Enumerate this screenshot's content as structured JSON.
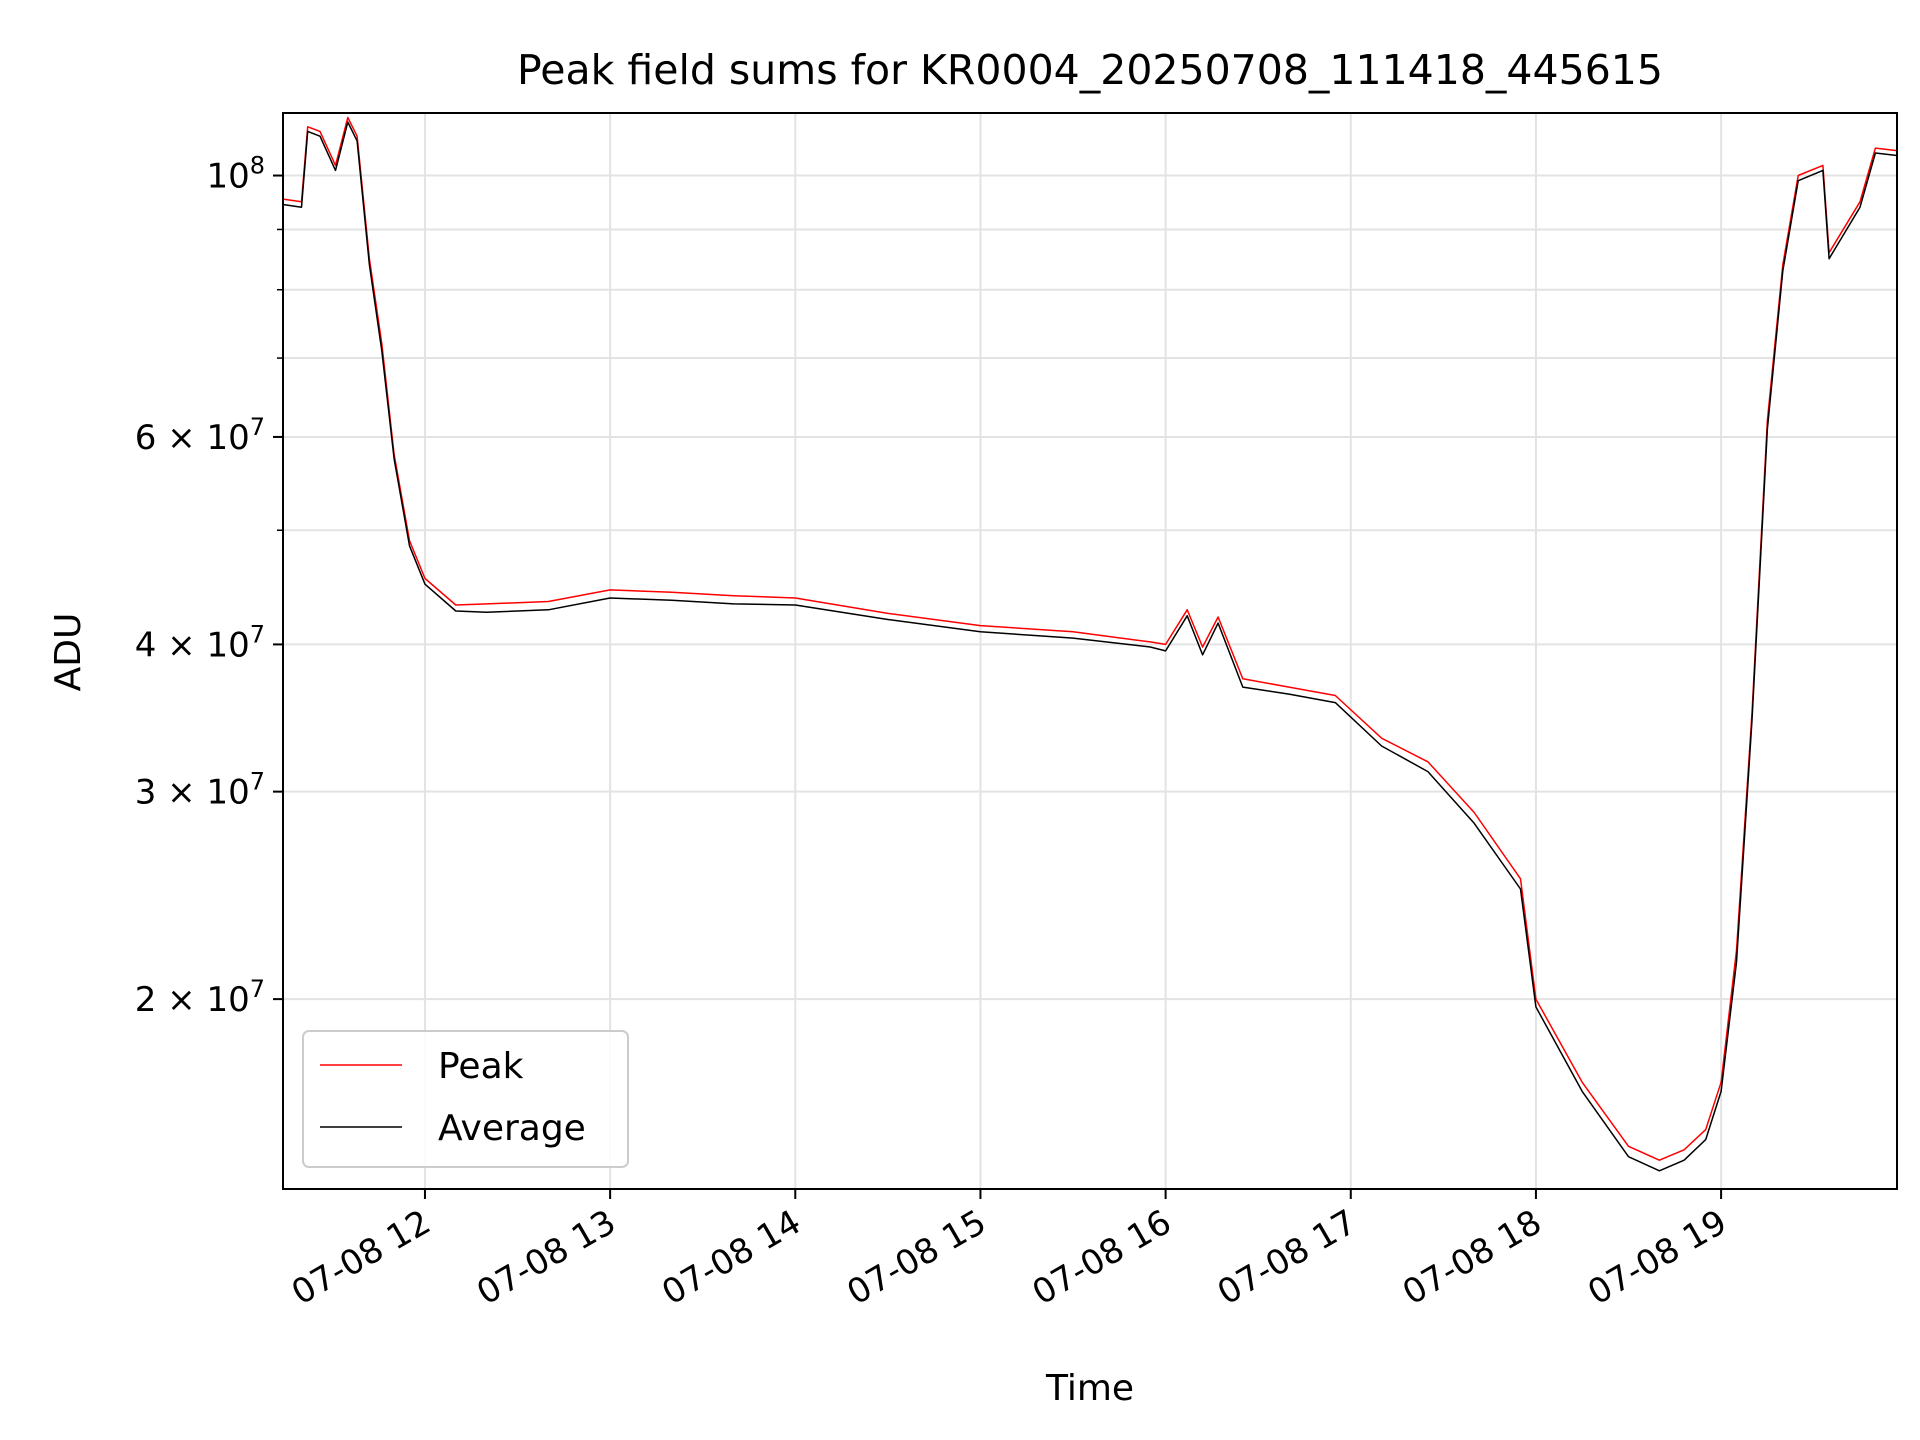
{
  "chart_data": {
    "type": "line",
    "title": "Peak field sums for KR0004_20250708_111418_445615",
    "xlabel": "Time",
    "ylabel": "ADU",
    "yscale": "log",
    "ylim": [
      13800000,
      113000000
    ],
    "xlim": [
      "2025-07-08 11:14",
      "2025-07-08 19:57"
    ],
    "grid": true,
    "legend": "lower-left",
    "x_ticks": [
      {
        "t": "2025-07-08 12:00",
        "label": "07-08 12"
      },
      {
        "t": "2025-07-08 13:00",
        "label": "07-08 13"
      },
      {
        "t": "2025-07-08 14:00",
        "label": "07-08 14"
      },
      {
        "t": "2025-07-08 15:00",
        "label": "07-08 15"
      },
      {
        "t": "2025-07-08 16:00",
        "label": "07-08 16"
      },
      {
        "t": "2025-07-08 17:00",
        "label": "07-08 17"
      },
      {
        "t": "2025-07-08 18:00",
        "label": "07-08 18"
      },
      {
        "t": "2025-07-08 19:00",
        "label": "07-08 19"
      }
    ],
    "y_ticks": [
      {
        "v": 20000000,
        "base": "2 × 10",
        "exp": "7"
      },
      {
        "v": 30000000,
        "base": "3 × 10",
        "exp": "7"
      },
      {
        "v": 40000000,
        "base": "4 × 10",
        "exp": "7"
      },
      {
        "v": 60000000,
        "base": "6 × 10",
        "exp": "7"
      },
      {
        "v": 100000000,
        "base": "10",
        "exp": "8"
      }
    ],
    "y_minor_ticks": [
      50000000,
      70000000,
      80000000,
      90000000
    ],
    "series": [
      {
        "name": "Peak",
        "color": "#ff0000",
        "points": [
          [
            "2025-07-08 11:14",
            95500000
          ],
          [
            "2025-07-08 11:20",
            95000000
          ],
          [
            "2025-07-08 11:22",
            110000000
          ],
          [
            "2025-07-08 11:26",
            109000000
          ],
          [
            "2025-07-08 11:31",
            102000000
          ],
          [
            "2025-07-08 11:35",
            112000000
          ],
          [
            "2025-07-08 11:38",
            108000000
          ],
          [
            "2025-07-08 11:42",
            85000000
          ],
          [
            "2025-07-08 11:46",
            72000000
          ],
          [
            "2025-07-08 11:50",
            58000000
          ],
          [
            "2025-07-08 11:55",
            49000000
          ],
          [
            "2025-07-08 12:00",
            45500000
          ],
          [
            "2025-07-08 12:10",
            43200000
          ],
          [
            "2025-07-08 12:20",
            43300000
          ],
          [
            "2025-07-08 12:40",
            43500000
          ],
          [
            "2025-07-08 13:00",
            44500000
          ],
          [
            "2025-07-08 13:20",
            44300000
          ],
          [
            "2025-07-08 13:40",
            44000000
          ],
          [
            "2025-07-08 14:00",
            43800000
          ],
          [
            "2025-07-08 14:30",
            42500000
          ],
          [
            "2025-07-08 15:00",
            41500000
          ],
          [
            "2025-07-08 15:30",
            41000000
          ],
          [
            "2025-07-08 15:55",
            40200000
          ],
          [
            "2025-07-08 16:00",
            40000000
          ],
          [
            "2025-07-08 16:07",
            42800000
          ],
          [
            "2025-07-08 16:12",
            39800000
          ],
          [
            "2025-07-08 16:17",
            42200000
          ],
          [
            "2025-07-08 16:25",
            37400000
          ],
          [
            "2025-07-08 16:40",
            36800000
          ],
          [
            "2025-07-08 16:55",
            36200000
          ],
          [
            "2025-07-08 17:10",
            33300000
          ],
          [
            "2025-07-08 17:25",
            31800000
          ],
          [
            "2025-07-08 17:40",
            28800000
          ],
          [
            "2025-07-08 17:55",
            25300000
          ],
          [
            "2025-07-08 18:00",
            20000000
          ],
          [
            "2025-07-08 18:15",
            17000000
          ],
          [
            "2025-07-08 18:30",
            15000000
          ],
          [
            "2025-07-08 18:40",
            14600000
          ],
          [
            "2025-07-08 18:48",
            14900000
          ],
          [
            "2025-07-08 18:55",
            15500000
          ],
          [
            "2025-07-08 19:00",
            17000000
          ],
          [
            "2025-07-08 19:05",
            22000000
          ],
          [
            "2025-07-08 19:10",
            35000000
          ],
          [
            "2025-07-08 19:15",
            62000000
          ],
          [
            "2025-07-08 19:20",
            84000000
          ],
          [
            "2025-07-08 19:25",
            100000000
          ],
          [
            "2025-07-08 19:33",
            102000000
          ],
          [
            "2025-07-08 19:35",
            86000000
          ],
          [
            "2025-07-08 19:45",
            95000000
          ],
          [
            "2025-07-08 19:50",
            105500000
          ],
          [
            "2025-07-08 19:57",
            105000000
          ]
        ]
      },
      {
        "name": "Average",
        "color": "#000000",
        "points": [
          [
            "2025-07-08 11:14",
            94500000
          ],
          [
            "2025-07-08 11:20",
            94000000
          ],
          [
            "2025-07-08 11:22",
            109000000
          ],
          [
            "2025-07-08 11:26",
            108000000
          ],
          [
            "2025-07-08 11:31",
            101000000
          ],
          [
            "2025-07-08 11:35",
            111000000
          ],
          [
            "2025-07-08 11:38",
            107000000
          ],
          [
            "2025-07-08 11:42",
            84000000
          ],
          [
            "2025-07-08 11:46",
            71000000
          ],
          [
            "2025-07-08 11:50",
            57500000
          ],
          [
            "2025-07-08 11:55",
            48500000
          ],
          [
            "2025-07-08 12:00",
            45000000
          ],
          [
            "2025-07-08 12:10",
            42700000
          ],
          [
            "2025-07-08 12:20",
            42600000
          ],
          [
            "2025-07-08 12:40",
            42800000
          ],
          [
            "2025-07-08 13:00",
            43800000
          ],
          [
            "2025-07-08 13:20",
            43600000
          ],
          [
            "2025-07-08 13:40",
            43300000
          ],
          [
            "2025-07-08 14:00",
            43200000
          ],
          [
            "2025-07-08 14:30",
            42000000
          ],
          [
            "2025-07-08 15:00",
            41000000
          ],
          [
            "2025-07-08 15:30",
            40500000
          ],
          [
            "2025-07-08 15:55",
            39800000
          ],
          [
            "2025-07-08 16:00",
            39500000
          ],
          [
            "2025-07-08 16:07",
            42300000
          ],
          [
            "2025-07-08 16:12",
            39200000
          ],
          [
            "2025-07-08 16:17",
            41700000
          ],
          [
            "2025-07-08 16:25",
            36800000
          ],
          [
            "2025-07-08 16:40",
            36300000
          ],
          [
            "2025-07-08 16:55",
            35700000
          ],
          [
            "2025-07-08 17:10",
            32800000
          ],
          [
            "2025-07-08 17:25",
            31200000
          ],
          [
            "2025-07-08 17:40",
            28200000
          ],
          [
            "2025-07-08 17:55",
            24800000
          ],
          [
            "2025-07-08 18:00",
            19700000
          ],
          [
            "2025-07-08 18:15",
            16700000
          ],
          [
            "2025-07-08 18:30",
            14700000
          ],
          [
            "2025-07-08 18:40",
            14300000
          ],
          [
            "2025-07-08 18:48",
            14600000
          ],
          [
            "2025-07-08 18:55",
            15200000
          ],
          [
            "2025-07-08 19:00",
            16700000
          ],
          [
            "2025-07-08 19:05",
            21500000
          ],
          [
            "2025-07-08 19:10",
            34500000
          ],
          [
            "2025-07-08 19:15",
            61000000
          ],
          [
            "2025-07-08 19:20",
            83000000
          ],
          [
            "2025-07-08 19:25",
            99000000
          ],
          [
            "2025-07-08 19:33",
            101000000
          ],
          [
            "2025-07-08 19:35",
            85000000
          ],
          [
            "2025-07-08 19:45",
            94000000
          ],
          [
            "2025-07-08 19:50",
            104500000
          ],
          [
            "2025-07-08 19:57",
            104000000
          ]
        ]
      }
    ]
  }
}
